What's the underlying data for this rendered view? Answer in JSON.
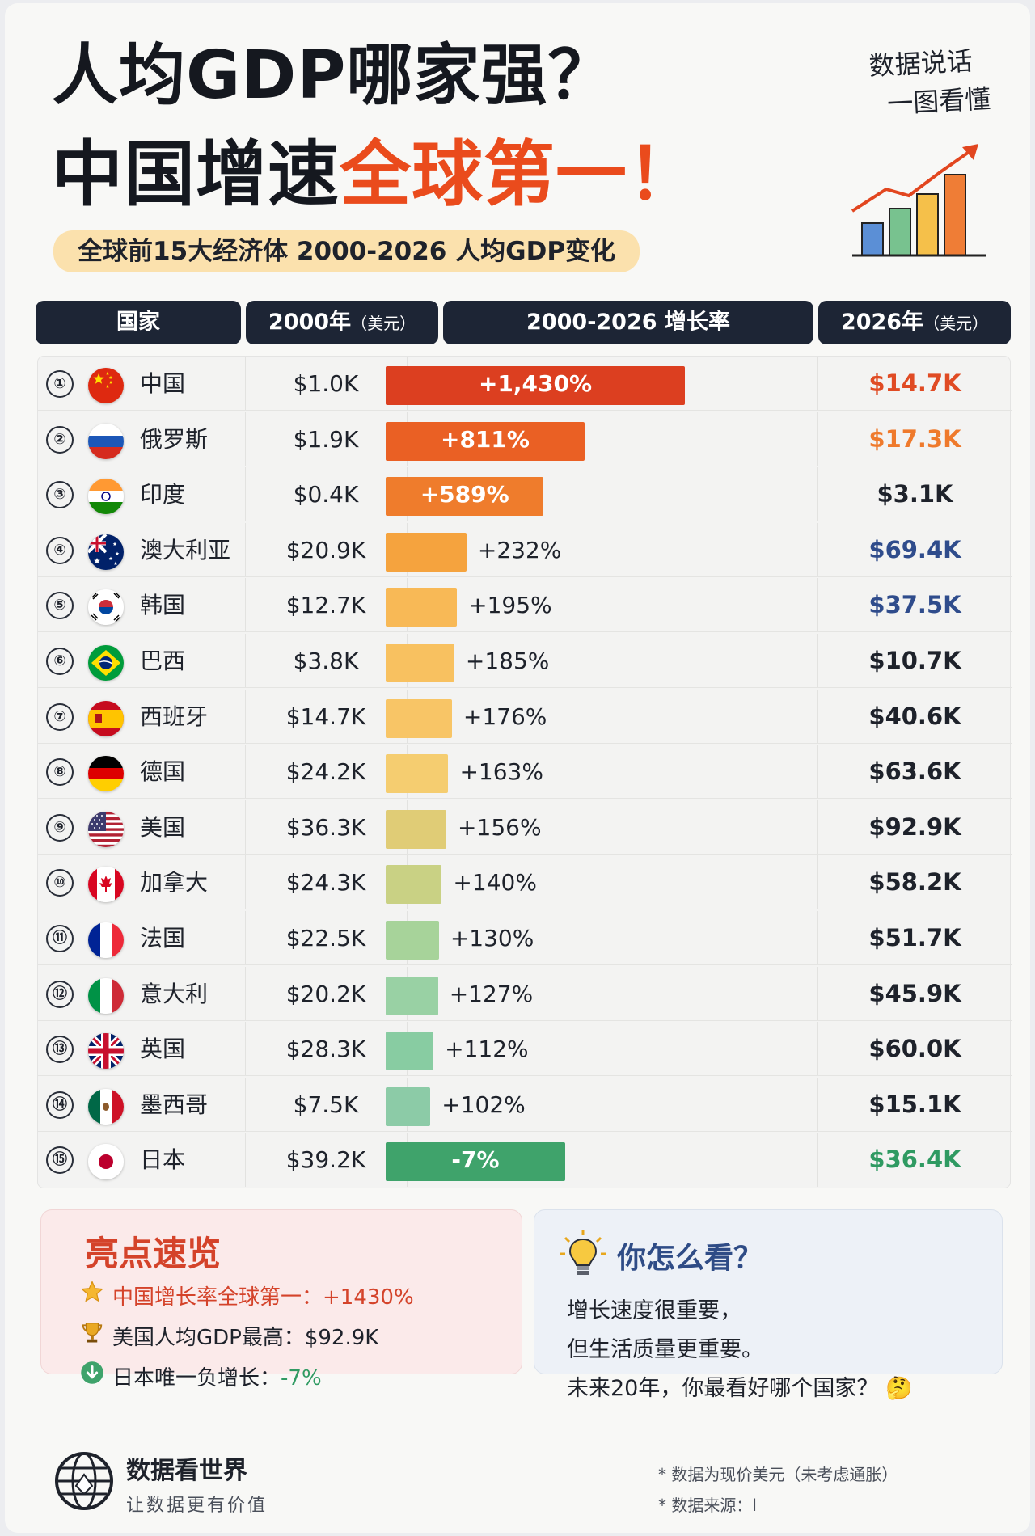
{
  "header": {
    "title_line1": "人均GDP哪家强？",
    "title_line2_prefix": "中国增速",
    "title_line2_highlight": "全球第一！",
    "subtitle": "全球前15大经济体 2000-2026 人均GDP变化",
    "slogan_line1": "数据说话",
    "slogan_line2": "一图看懂"
  },
  "columns": {
    "country": "国家",
    "y2000": "2000年",
    "y2000_unit": "（美元）",
    "growth": "2000-2026 增长率",
    "y2026": "2026年",
    "y2026_unit": "（美元）"
  },
  "chart_data": {
    "type": "bar",
    "categories": [
      "中国",
      "俄罗斯",
      "印度",
      "澳大利亚",
      "韩国",
      "巴西",
      "西班牙",
      "德国",
      "美国",
      "加拿大",
      "法国",
      "意大利",
      "英国",
      "墨西哥",
      "日本"
    ],
    "ranks": [
      "①",
      "②",
      "③",
      "④",
      "⑤",
      "⑥",
      "⑦",
      "⑧",
      "⑨",
      "⑩",
      "⑪",
      "⑫",
      "⑬",
      "⑭",
      "⑮"
    ],
    "values_2000_label": [
      "$1.0K",
      "$1.9K",
      "$0.4K",
      "$20.9K",
      "$12.7K",
      "$3.8K",
      "$14.7K",
      "$24.2K",
      "$36.3K",
      "$24.3K",
      "$22.5K",
      "$20.2K",
      "$28.3K",
      "$7.5K",
      "$39.2K"
    ],
    "growth_values": [
      1430,
      811,
      589,
      232,
      195,
      185,
      176,
      163,
      156,
      140,
      130,
      127,
      112,
      102,
      -7
    ],
    "growth_labels": [
      "+1,430%",
      "+811%",
      "+589%",
      "+232%",
      "+195%",
      "+185%",
      "+176%",
      "+163%",
      "+156%",
      "+140%",
      "+130%",
      "+127%",
      "+112%",
      "+102%",
      "-7%"
    ],
    "values_2026_label": [
      "$14.7K",
      "$17.3K",
      "$3.1K",
      "$69.4K",
      "$37.5K",
      "$10.7K",
      "$40.6K",
      "$63.6K",
      "$92.9K",
      "$58.2K",
      "$51.7K",
      "$45.9K",
      "$60.0K",
      "$15.1K",
      "$36.4K"
    ],
    "bar_colors": [
      "#dc3f20",
      "#ea6024",
      "#ef7c2c",
      "#f5a33e",
      "#f8b956",
      "#f8c160",
      "#f8c566",
      "#f5cd70",
      "#e0cc76",
      "#c9d184",
      "#a7d39a",
      "#99d1a4",
      "#88cca2",
      "#8ccba7",
      "#3fa36b"
    ],
    "value_2026_colors": [
      "#e04b24",
      "#ef7a2c",
      "#1e222b",
      "#2f4c8c",
      "#2f4c8c",
      "#1e222b",
      "#1e222b",
      "#1e222b",
      "#1e222b",
      "#1e222b",
      "#1e222b",
      "#1e222b",
      "#1e222b",
      "#1e222b",
      "#2f9a62"
    ]
  },
  "highlights": {
    "title": "亮点速览",
    "items": [
      {
        "icon": "star-icon",
        "text": "中国增长率全球第一：+1430%",
        "color": "#d4432a"
      },
      {
        "icon": "trophy-icon",
        "text": "美国人均GDP最高：$92.9K",
        "color": "#1e222b"
      },
      {
        "icon": "down-arrow-icon",
        "text": "日本唯一负增长：",
        "value": "-7%",
        "color": "#1e222b",
        "value_color": "#2f9a62"
      }
    ]
  },
  "opinion": {
    "title": "你怎么看？",
    "line1": "增长速度很重要，",
    "line2": "但生活质量更重要。",
    "line3": "未来20年，你最看好哪个国家？",
    "emoji": "🤔"
  },
  "footer": {
    "brand": "数据看世界",
    "tagline": "让数据更有价值",
    "note1": "* 数据为现价美元（未考虑通胀）",
    "note2": "* 数据来源：l"
  }
}
